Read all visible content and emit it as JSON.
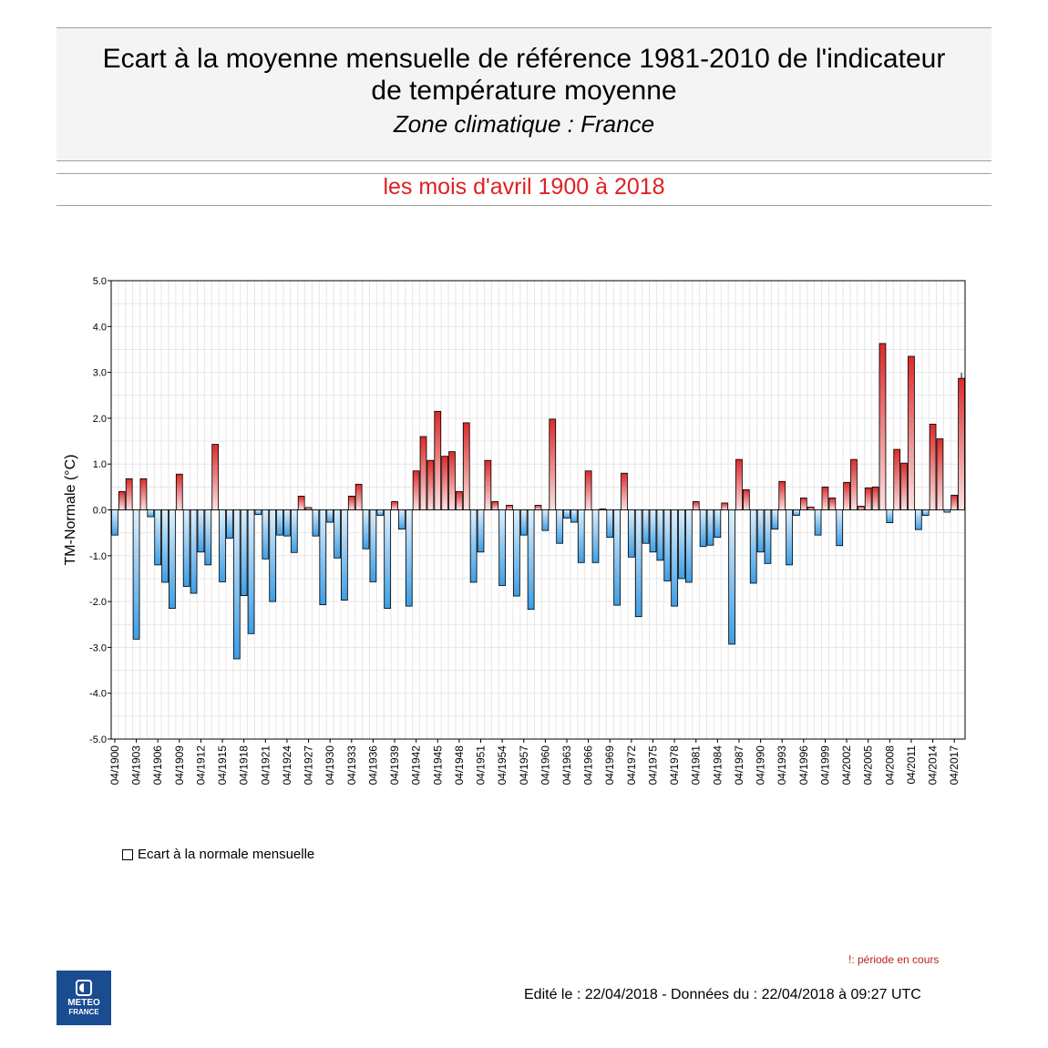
{
  "header": {
    "title_line1": "Ecart à la moyenne mensuelle de référence 1981-2010 de l'indicateur",
    "title_line2": "de température moyenne",
    "subtitle": "Zone climatique : France",
    "period": "les mois d'avril 1900 à 2018"
  },
  "legend": {
    "label": "Ecart à la normale mensuelle"
  },
  "logo": {
    "line1": "METEO",
    "line2": "FRANCE"
  },
  "footer": {
    "note": "!: période en cours",
    "edited": "Edité le : 22/04/2018 - Données du : 22/04/2018 à 09:27 UTC"
  },
  "colors": {
    "positive_dark": "#dc2a2a",
    "positive_light": "#fde2e2",
    "negative_dark": "#3c9ee6",
    "negative_light": "#dff0fd"
  },
  "chart_data": {
    "type": "bar",
    "ylabel": "TM-Normale (°C)",
    "ylim": [
      -5,
      5
    ],
    "yticks": [
      5,
      4,
      3,
      2,
      1,
      0,
      -1,
      -2,
      -3,
      -4,
      -5
    ],
    "ytick_labels": [
      "5.0",
      "4.0",
      "3.0",
      "2.0",
      "1.0",
      "0.0",
      "-1.0",
      "-2.0",
      "-3.0",
      "-4.0",
      "-5.0"
    ],
    "grid": true,
    "legend_position": "bottom-left",
    "xtick_labels": [
      "04/1900",
      "04/1903",
      "04/1906",
      "04/1909",
      "04/1912",
      "04/1915",
      "04/1918",
      "04/1921",
      "04/1924",
      "04/1927",
      "04/1930",
      "04/1933",
      "04/1936",
      "04/1939",
      "04/1942",
      "04/1945",
      "04/1948",
      "04/1951",
      "04/1954",
      "04/1957",
      "04/1960",
      "04/1963",
      "04/1966",
      "04/1969",
      "04/1972",
      "04/1975",
      "04/1978",
      "04/1981",
      "04/1984",
      "04/1987",
      "04/1990",
      "04/1993",
      "04/1996",
      "04/1999",
      "04/2002",
      "04/2005",
      "04/2008",
      "04/2011",
      "04/2014",
      "04/2017"
    ],
    "x_start_year": 1900,
    "x_end_year": 2018,
    "in_progress_year": 2018,
    "values": [
      -0.55,
      0.4,
      0.68,
      -2.82,
      0.68,
      -0.15,
      -1.2,
      -1.58,
      -2.15,
      0.78,
      -1.67,
      -1.82,
      -0.92,
      -1.2,
      1.43,
      -1.57,
      -0.62,
      -3.25,
      -1.87,
      -2.7,
      -0.1,
      -1.07,
      -2.0,
      -0.55,
      -0.57,
      -0.93,
      0.3,
      0.05,
      -0.57,
      -2.07,
      -0.27,
      -1.05,
      -1.97,
      0.3,
      0.56,
      -0.85,
      -1.57,
      -0.12,
      -2.15,
      0.18,
      -0.42,
      -2.1,
      0.85,
      1.6,
      1.08,
      2.15,
      1.17,
      1.27,
      0.4,
      1.9,
      -1.58,
      -0.92,
      1.08,
      0.18,
      -1.65,
      0.1,
      -1.88,
      -0.55,
      -2.17,
      0.1,
      -0.45,
      1.98,
      -0.73,
      -0.18,
      -0.27,
      -1.15,
      0.85,
      -1.15,
      0.02,
      -0.6,
      -2.08,
      0.8,
      -1.03,
      -2.33,
      -0.73,
      -0.92,
      -1.1,
      -1.55,
      -2.1,
      -1.5,
      -1.58,
      0.18,
      -0.8,
      -0.77,
      -0.6,
      0.15,
      -2.93,
      1.1,
      0.44,
      -1.6,
      -0.92,
      -1.17,
      -0.42,
      0.62,
      -1.2,
      -0.12,
      0.26,
      0.06,
      -0.55,
      0.5,
      0.26,
      -0.78,
      0.6,
      1.1,
      0.08,
      0.48,
      0.5,
      3.63,
      -0.28,
      1.32,
      1.02,
      3.35,
      -0.43,
      -0.12,
      1.87,
      1.55,
      -0.05,
      0.32,
      2.87
    ]
  }
}
